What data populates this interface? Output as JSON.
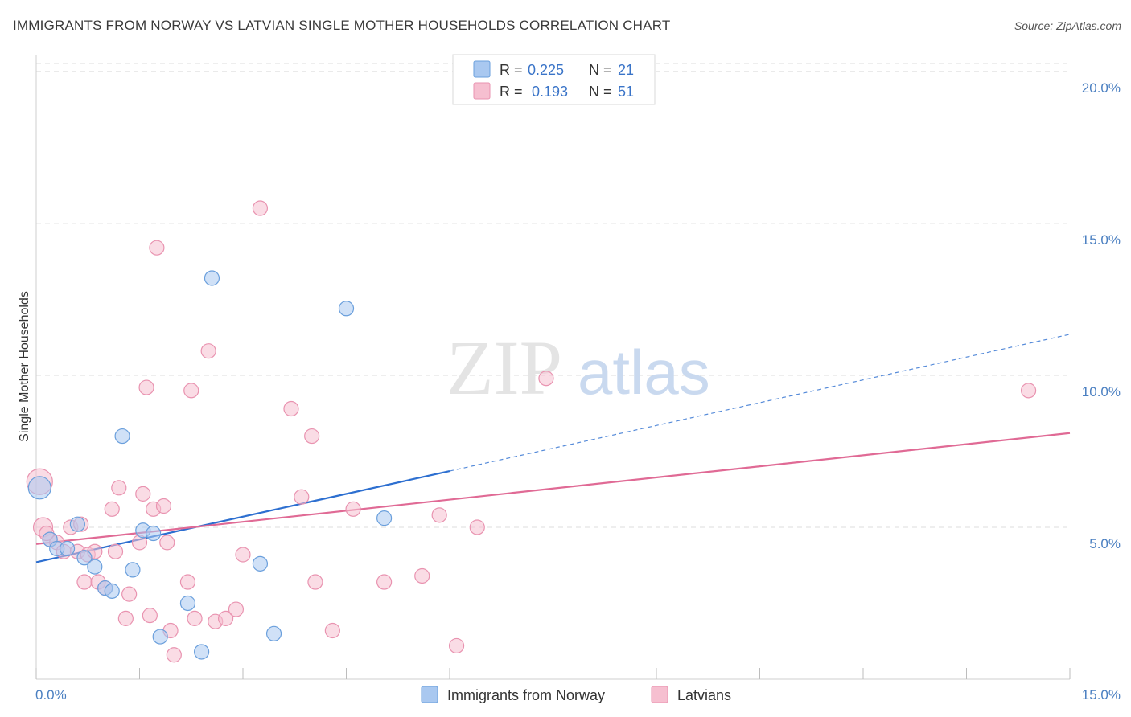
{
  "header": {
    "title": "IMMIGRANTS FROM NORWAY VS LATVIAN SINGLE MOTHER HOUSEHOLDS CORRELATION CHART",
    "source": "Source: ZipAtlas.com"
  },
  "watermark": {
    "zip": "ZIP",
    "atlas": "atlas"
  },
  "colors": {
    "norway_fill": "#a9c8f0",
    "norway_stroke": "#6a9fdc",
    "norway_line": "#2d6fd0",
    "latvian_fill": "#f6bfd0",
    "latvian_stroke": "#e993b0",
    "latvian_line": "#e06a95",
    "grid": "#dddddd",
    "tick_label": "#4a7fc1"
  },
  "chart_data": {
    "type": "scatter",
    "title": "IMMIGRANTS FROM NORWAY VS LATVIAN SINGLE MOTHER HOUSEHOLDS CORRELATION CHART",
    "xlabel": "",
    "ylabel": "Single Mother Households",
    "xlim": [
      0,
      15
    ],
    "ylim": [
      0,
      20.5
    ],
    "x_tick_labels": [
      "0.0%",
      "15.0%"
    ],
    "y_ticks": [
      5,
      10,
      15,
      20
    ],
    "y_tick_labels": [
      "5.0%",
      "10.0%",
      "15.0%",
      "20.0%"
    ],
    "grid": true,
    "legend_position": "top-center",
    "stats": [
      {
        "r_label": "R =",
        "r": "0.225",
        "n_label": "N =",
        "n": "21"
      },
      {
        "r_label": "R =",
        "r": "0.193",
        "n_label": "N =",
        "n": "51"
      }
    ],
    "series": [
      {
        "name": "Immigrants from Norway",
        "points": [
          [
            0.05,
            6.3,
            14
          ],
          [
            0.2,
            4.6,
            9
          ],
          [
            0.3,
            4.3,
            9
          ],
          [
            0.45,
            4.3,
            9
          ],
          [
            0.6,
            5.1,
            9
          ],
          [
            0.7,
            4.0,
            9
          ],
          [
            0.85,
            3.7,
            9
          ],
          [
            1.0,
            3.0,
            9
          ],
          [
            1.1,
            2.9,
            9
          ],
          [
            1.25,
            8.0,
            9
          ],
          [
            1.4,
            3.6,
            9
          ],
          [
            1.55,
            4.9,
            9
          ],
          [
            1.7,
            4.8,
            9
          ],
          [
            1.8,
            1.4,
            9
          ],
          [
            2.2,
            2.5,
            9
          ],
          [
            2.4,
            0.9,
            9
          ],
          [
            2.55,
            13.2,
            9
          ],
          [
            3.25,
            3.8,
            9
          ],
          [
            3.45,
            1.5,
            9
          ],
          [
            4.5,
            12.2,
            9
          ],
          [
            5.05,
            5.3,
            9
          ]
        ],
        "trend": {
          "x0": 0,
          "y0": 3.85,
          "x1": 6.0,
          "y1": 6.85,
          "x_dash_end": 15.0,
          "y_dash_end": 11.35
        }
      },
      {
        "name": "Latvians",
        "points": [
          [
            0.05,
            6.5,
            16
          ],
          [
            0.1,
            5.0,
            12
          ],
          [
            0.2,
            4.6,
            9
          ],
          [
            0.3,
            4.5,
            9
          ],
          [
            0.4,
            4.2,
            9
          ],
          [
            0.5,
            5.0,
            9
          ],
          [
            0.6,
            4.2,
            9
          ],
          [
            0.7,
            3.2,
            9
          ],
          [
            0.75,
            4.1,
            9
          ],
          [
            0.85,
            4.2,
            9
          ],
          [
            0.9,
            3.2,
            9
          ],
          [
            1.0,
            3.0,
            9
          ],
          [
            1.1,
            5.6,
            9
          ],
          [
            1.15,
            4.2,
            9
          ],
          [
            1.2,
            6.3,
            9
          ],
          [
            1.3,
            2.0,
            9
          ],
          [
            1.35,
            2.8,
            9
          ],
          [
            1.5,
            4.5,
            9
          ],
          [
            1.55,
            6.1,
            9
          ],
          [
            1.6,
            9.6,
            9
          ],
          [
            1.65,
            2.1,
            9
          ],
          [
            1.7,
            5.6,
            9
          ],
          [
            1.75,
            14.2,
            9
          ],
          [
            1.85,
            5.7,
            9
          ],
          [
            1.9,
            4.5,
            9
          ],
          [
            1.95,
            1.6,
            9
          ],
          [
            2.0,
            0.8,
            9
          ],
          [
            2.2,
            3.2,
            9
          ],
          [
            2.25,
            9.5,
            9
          ],
          [
            2.3,
            2.0,
            9
          ],
          [
            2.5,
            10.8,
            9
          ],
          [
            2.6,
            1.9,
            9
          ],
          [
            2.75,
            2.0,
            9
          ],
          [
            2.9,
            2.3,
            9
          ],
          [
            3.0,
            4.1,
            9
          ],
          [
            3.25,
            15.5,
            9
          ],
          [
            3.7,
            8.9,
            9
          ],
          [
            3.85,
            6.0,
            9
          ],
          [
            4.0,
            8.0,
            9
          ],
          [
            4.05,
            3.2,
            9
          ],
          [
            4.3,
            1.6,
            9
          ],
          [
            4.6,
            5.6,
            9
          ],
          [
            5.05,
            3.2,
            9
          ],
          [
            5.6,
            3.4,
            9
          ],
          [
            5.85,
            5.4,
            9
          ],
          [
            6.1,
            1.1,
            9
          ],
          [
            6.4,
            5.0,
            9
          ],
          [
            7.4,
            9.9,
            9
          ],
          [
            14.4,
            9.5,
            9
          ],
          [
            0.15,
            4.8,
            9
          ],
          [
            0.65,
            5.1,
            9
          ]
        ],
        "trend": {
          "x0": 0,
          "y0": 4.45,
          "x1": 15.0,
          "y1": 8.1
        }
      }
    ]
  }
}
